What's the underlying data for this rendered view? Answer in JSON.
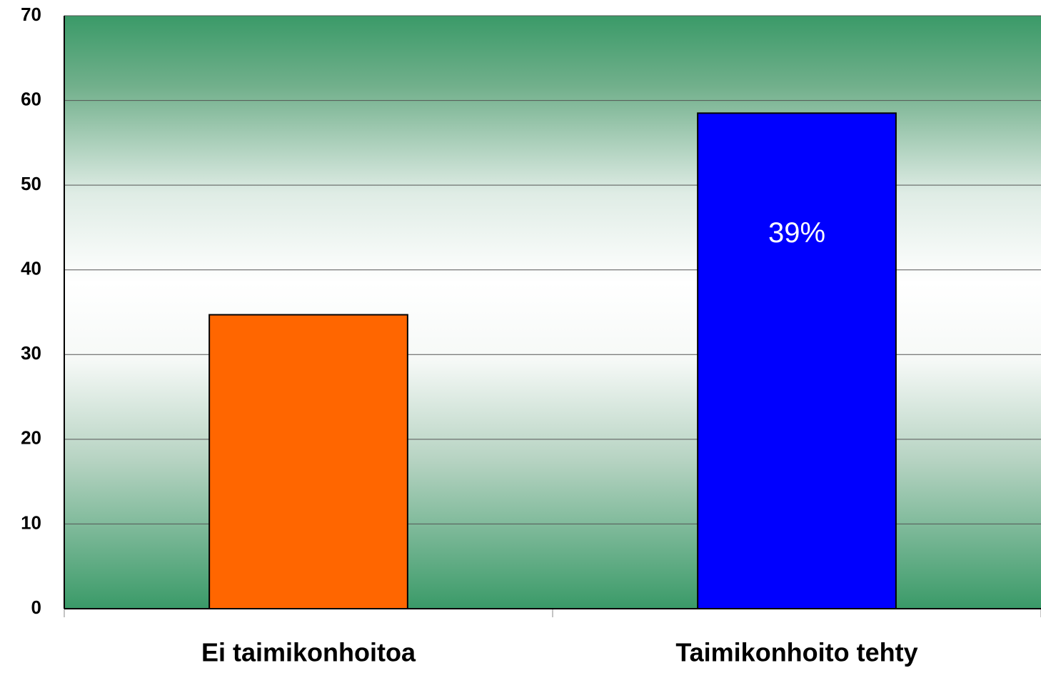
{
  "chart_data": {
    "type": "bar",
    "categories": [
      "Ei taimikonhoitoa",
      "Taimikonhoito tehty"
    ],
    "values": [
      34.7,
      58.5
    ],
    "colors": [
      "#ff6600",
      "#0000ff"
    ],
    "annotation": "39%",
    "ylim": [
      0,
      70
    ],
    "yticks": [
      0,
      10,
      20,
      30,
      40,
      50,
      60,
      70
    ],
    "grid": true
  }
}
